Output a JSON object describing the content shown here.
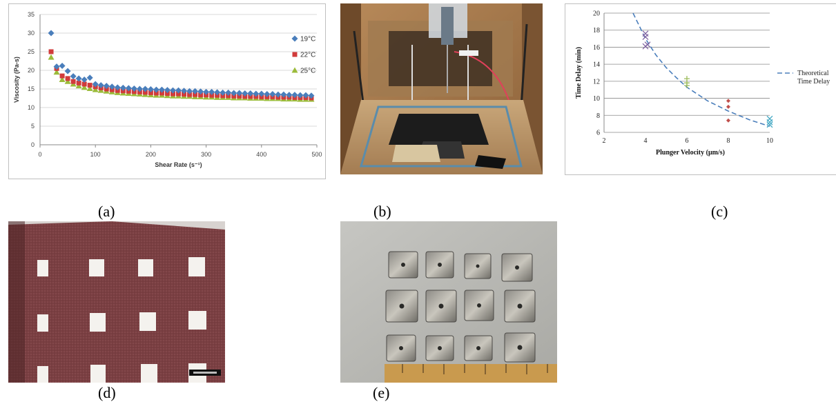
{
  "captions": {
    "a": "(a)",
    "b": "(b)",
    "c": "(c)",
    "d": "(d)",
    "e": "(e)"
  },
  "colors": {
    "series_19": "#4a7ebb",
    "series_22": "#d13b3b",
    "series_25": "#9bbb3a",
    "theory_line": "#4a7ebb"
  },
  "chart_data": [
    {
      "type": "scatter",
      "xlabel": "Shear Rate (s⁻¹)",
      "ylabel": "Viscosity (Pa-s)",
      "xlim": [
        0,
        500
      ],
      "ylim": [
        0,
        35
      ],
      "xticks": [
        "0",
        "100",
        "200",
        "300",
        "400",
        "500"
      ],
      "yticks": [
        "0",
        "5",
        "10",
        "15",
        "20",
        "25",
        "30",
        "35"
      ],
      "grid": true,
      "legend_position": "right",
      "x": [
        20,
        30,
        40,
        50,
        60,
        70,
        80,
        90,
        100,
        110,
        120,
        130,
        140,
        150,
        160,
        170,
        180,
        190,
        200,
        210,
        220,
        230,
        240,
        250,
        260,
        270,
        280,
        290,
        300,
        310,
        320,
        330,
        340,
        350,
        360,
        370,
        380,
        390,
        400,
        410,
        420,
        430,
        440,
        450,
        460,
        470,
        480,
        490
      ],
      "series": [
        {
          "name": "19°C",
          "marker": "diamond",
          "values": [
            30.0,
            21.0,
            21.2,
            19.8,
            18.4,
            17.8,
            17.5,
            18.0,
            16.3,
            16.0,
            15.8,
            15.6,
            15.4,
            15.3,
            15.2,
            15.1,
            15.0,
            15.0,
            14.9,
            14.8,
            14.8,
            14.7,
            14.6,
            14.6,
            14.5,
            14.4,
            14.4,
            14.3,
            14.2,
            14.2,
            14.1,
            14.0,
            14.0,
            13.9,
            13.9,
            13.8,
            13.8,
            13.7,
            13.7,
            13.6,
            13.6,
            13.5,
            13.5,
            13.4,
            13.4,
            13.3,
            13.3,
            13.2
          ]
        },
        {
          "name": "22°C",
          "marker": "square",
          "values": [
            25.0,
            20.5,
            18.5,
            17.8,
            17.0,
            16.6,
            16.3,
            16.0,
            15.6,
            15.3,
            15.0,
            14.8,
            14.6,
            14.5,
            14.4,
            14.3,
            14.2,
            14.1,
            14.0,
            13.9,
            13.9,
            13.8,
            13.7,
            13.7,
            13.6,
            13.5,
            13.5,
            13.4,
            13.4,
            13.3,
            13.3,
            13.2,
            13.2,
            13.1,
            13.1,
            13.0,
            13.0,
            13.0,
            12.9,
            12.9,
            12.9,
            12.8,
            12.8,
            12.8,
            12.7,
            12.7,
            12.7,
            12.6
          ]
        },
        {
          "name": "25°C",
          "marker": "triangle",
          "values": [
            23.5,
            19.5,
            17.5,
            17.0,
            16.3,
            15.8,
            15.4,
            15.1,
            14.8,
            14.6,
            14.4,
            14.2,
            14.0,
            13.9,
            13.8,
            13.7,
            13.6,
            13.5,
            13.4,
            13.3,
            13.3,
            13.2,
            13.1,
            13.1,
            13.0,
            13.0,
            12.9,
            12.9,
            12.8,
            12.8,
            12.7,
            12.7,
            12.7,
            12.6,
            12.6,
            12.6,
            12.5,
            12.5,
            12.5,
            12.4,
            12.4,
            12.4,
            12.3,
            12.3,
            12.3,
            12.2,
            12.2,
            12.2
          ]
        }
      ]
    },
    {
      "type": "scatter",
      "xlabel": "Plunger Velocity (μm/s)",
      "ylabel": "Time Delay (min)",
      "xlim": [
        2,
        10
      ],
      "ylim": [
        6,
        20
      ],
      "xticks": [
        "2",
        "4",
        "6",
        "8",
        "10"
      ],
      "yticks": [
        "6",
        "8",
        "10",
        "12",
        "14",
        "16",
        "18",
        "20"
      ],
      "grid": true,
      "legend_position": "right",
      "legend": [
        "Theoretical",
        "Time Delay"
      ],
      "theoretical_curve": {
        "style": "dashed",
        "note": "Theoretical Time Delay",
        "x": [
          3.4,
          3.7,
          4,
          4.5,
          5,
          5.5,
          6,
          6.5,
          7,
          7.5,
          8,
          8.5,
          9,
          9.5,
          10
        ],
        "y": [
          20.0,
          18.5,
          17.0,
          15.1,
          13.6,
          12.4,
          11.3,
          10.5,
          9.7,
          9.1,
          8.5,
          8.0,
          7.5,
          7.1,
          6.7
        ]
      },
      "points": [
        {
          "group": "4",
          "marker": "x",
          "color": "#8064a2",
          "values": [
            {
              "x": 4,
              "y": 17.6
            },
            {
              "x": 4,
              "y": 17.2
            },
            {
              "x": 4,
              "y": 16.1
            },
            {
              "x": 4.1,
              "y": 16.3
            }
          ]
        },
        {
          "group": "6",
          "marker": "+",
          "color": "#9bbb59",
          "values": [
            {
              "x": 6,
              "y": 12.3
            },
            {
              "x": 6,
              "y": 11.8
            },
            {
              "x": 6,
              "y": 11.5
            }
          ]
        },
        {
          "group": "8",
          "marker": "diamond",
          "color": "#c0504d",
          "values": [
            {
              "x": 8,
              "y": 9.7
            },
            {
              "x": 8,
              "y": 9.0
            },
            {
              "x": 8,
              "y": 7.4
            }
          ]
        },
        {
          "group": "10",
          "marker": "x",
          "color": "#4bacc6",
          "values": [
            {
              "x": 10,
              "y": 7.6
            },
            {
              "x": 10,
              "y": 7.2
            },
            {
              "x": 10,
              "y": 6.9
            }
          ]
        }
      ]
    }
  ]
}
